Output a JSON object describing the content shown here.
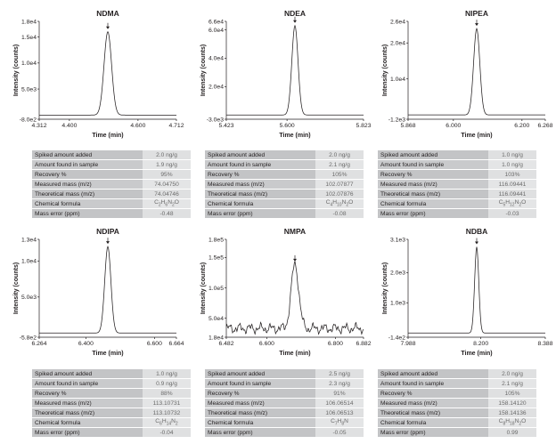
{
  "table_labels": [
    "Spiked amount added",
    "Amount found in sample",
    "Recovery %",
    "Measured mass (m/z)",
    "Theoretical mass (m/z)",
    "Chemical formula",
    "Mass error (ppm)"
  ],
  "chart_data": [
    {
      "type": "line",
      "title": "NDMA",
      "xlabel": "Time (min)",
      "ylabel": "Intensity (counts)",
      "xlim": [
        4.312,
        4.712
      ],
      "ylim": [
        -800,
        18000
      ],
      "xticks": [
        "4.312",
        "4.400",
        "4.600",
        "4.712"
      ],
      "xtick_values": [
        4.312,
        4.4,
        4.6,
        4.712
      ],
      "yticks": [
        "1.8e4",
        "1.5e4",
        "1.0e4",
        "5.0e3",
        "-8.0e2"
      ],
      "ytick_values": [
        18000,
        15000,
        10000,
        5000,
        -800
      ],
      "peak": {
        "rt": 4.512,
        "height": 16000,
        "width": 0.011
      },
      "baseline": 0,
      "noise": 0,
      "table_values": [
        "2.0 ng/g",
        "1.9 ng/g",
        "95%",
        "74.04750",
        "74.04746",
        "C2H6N2O",
        "-0.48"
      ]
    },
    {
      "type": "line",
      "title": "NDEA",
      "xlabel": "Time (min)",
      "ylabel": "Intensity (counts)",
      "xlim": [
        5.423,
        5.823
      ],
      "ylim": [
        -3000,
        66000
      ],
      "xticks": [
        "5.423",
        "5.600",
        "5.823"
      ],
      "xtick_values": [
        5.423,
        5.6,
        5.823
      ],
      "yticks": [
        "6.6e4",
        "6.0e4",
        "4.0e4",
        "2.0e4",
        "-3.0e3"
      ],
      "ytick_values": [
        66000,
        60000,
        40000,
        20000,
        -3000
      ],
      "peak": {
        "rt": 5.623,
        "height": 63000,
        "width": 0.009
      },
      "baseline": 0,
      "noise": 0,
      "table_values": [
        "2.0 ng/g",
        "2.1 ng/g",
        "105%",
        "102.07877",
        "102.07876",
        "C4H10N2O",
        "-0.08"
      ]
    },
    {
      "type": "line",
      "title": "NIPEA",
      "xlabel": "Time (min)",
      "ylabel": "Intensity (counts)",
      "xlim": [
        5.868,
        6.268
      ],
      "ylim": [
        -1200,
        26000
      ],
      "xticks": [
        "5.868",
        "6.000",
        "6.200",
        "6.268"
      ],
      "xtick_values": [
        5.868,
        6.0,
        6.2,
        6.268
      ],
      "yticks": [
        "2.6e4",
        "2.0e4",
        "1.0e4",
        "-1.2e3"
      ],
      "ytick_values": [
        26000,
        20000,
        10000,
        -1200
      ],
      "peak": {
        "rt": 6.068,
        "height": 24000,
        "width": 0.009
      },
      "baseline": 0,
      "noise": 0,
      "table_values": [
        "1.0 ng/g",
        "1.0 ng/g",
        "103%",
        "116.09441",
        "116.09441",
        "C5H12N2O",
        "-0.03"
      ]
    },
    {
      "type": "line",
      "title": "NDIPA",
      "xlabel": "Time (min)",
      "ylabel": "Intensity (counts)",
      "xlim": [
        6.264,
        6.664
      ],
      "ylim": [
        -580,
        13000
      ],
      "xticks": [
        "6.264",
        "6.400",
        "6.600",
        "6.664"
      ],
      "xtick_values": [
        6.264,
        6.4,
        6.6,
        6.664
      ],
      "yticks": [
        "1.3e4",
        "1.0e4",
        "5.0e3",
        "-5.8e2"
      ],
      "ytick_values": [
        13000,
        10000,
        5000,
        -580
      ],
      "peak": {
        "rt": 6.464,
        "height": 12000,
        "width": 0.009
      },
      "baseline": 0,
      "noise": 0,
      "table_values": [
        "1.0 ng/g",
        "0.9 ng/g",
        "88%",
        "113.10731",
        "113.10732",
        "C6H14N2",
        "-0.04"
      ]
    },
    {
      "type": "line",
      "title": "NMPA",
      "xlabel": "Time (min)",
      "ylabel": "Intensity (counts)",
      "xlim": [
        6.482,
        6.882
      ],
      "ylim": [
        18400,
        180000
      ],
      "xticks": [
        "6.482",
        "6.600",
        "6.800",
        "6.882"
      ],
      "xtick_values": [
        6.482,
        6.6,
        6.8,
        6.882
      ],
      "yticks": [
        "1.8e5",
        "1.5e5",
        "1.0e5",
        "5.0e4",
        "1.8e4"
      ],
      "ytick_values": [
        180000,
        150000,
        100000,
        50000,
        18400
      ],
      "peak": {
        "rt": 6.682,
        "height": 106000,
        "width": 0.011
      },
      "baseline": 33000,
      "noise": 9000,
      "table_values": [
        "2.5 ng/g",
        "2.3 ng/g",
        "91%",
        "106.06514",
        "106.06513",
        "C7H8N",
        "-0.05"
      ]
    },
    {
      "type": "line",
      "title": "NDBA",
      "xlabel": "Time (min)",
      "ylabel": "Intensity (counts)",
      "xlim": [
        7.988,
        8.388
      ],
      "ylim": [
        -140,
        3100
      ],
      "xticks": [
        "7.988",
        "8.200",
        "8.388"
      ],
      "xtick_values": [
        7.988,
        8.2,
        8.388
      ],
      "yticks": [
        "3.1e3",
        "2.0e3",
        "1.0e3",
        "-1.4e2"
      ],
      "ytick_values": [
        3100,
        2000,
        1000,
        -140
      ],
      "peak": {
        "rt": 8.188,
        "height": 2850,
        "width": 0.006
      },
      "baseline": 0,
      "noise": 0,
      "table_values": [
        "2.0 ng/g",
        "2.1 ng/g",
        "105%",
        "158.14120",
        "158.14136",
        "C8H18N2O",
        "0.99"
      ]
    }
  ]
}
